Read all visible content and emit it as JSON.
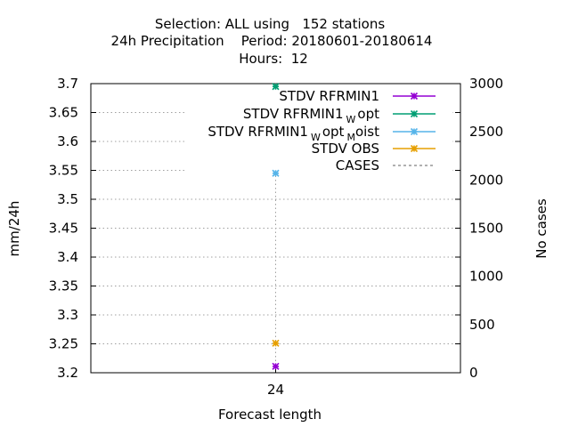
{
  "title_lines": [
    "Selection: ALL using   152 stations",
    "24h Precipitation    Period: 20180601-20180614",
    "Hours:  12"
  ],
  "colors": {
    "rfrmin1": "#9400d3",
    "rfrmin1_wopt": "#009e73",
    "rfrmin1_wopt_moist": "#56b4e9",
    "obs": "#e69f00",
    "cases": "#808080"
  },
  "chart_data": {
    "type": "scatter",
    "x_categories": [
      "24"
    ],
    "xlabel": "Forecast length",
    "ylabel": "mm/24h",
    "y2label": "No cases",
    "ylim": [
      3.2,
      3.7
    ],
    "yticks": [
      "3.2",
      "3.25",
      "3.3",
      "3.35",
      "3.4",
      "3.45",
      "3.5",
      "3.55",
      "3.6",
      "3.65",
      "3.7"
    ],
    "y2lim": [
      0,
      3000
    ],
    "y2ticks": [
      "0",
      "500",
      "1000",
      "1500",
      "2000",
      "2500",
      "3000"
    ],
    "grid": true,
    "legend_position": "top-right",
    "series": [
      {
        "name": "STDV RFRMIN1",
        "name_sub": "",
        "name_rest": "",
        "key": "rfrmin1",
        "axis": "y",
        "x": "24",
        "value": 3.211
      },
      {
        "name": "STDV RFRMIN1",
        "name_sub": "W",
        "name_rest": "opt",
        "key": "rfrmin1_wopt",
        "axis": "y",
        "x": "24",
        "value": 3.695
      },
      {
        "name": "STDV RFRMIN1",
        "name_sub": "W",
        "name_rest": "opt",
        "name_sub2": "M",
        "name_rest2": "oist",
        "key": "rfrmin1_wopt_moist",
        "axis": "y",
        "x": "24",
        "value": 3.545
      },
      {
        "name": "STDV OBS",
        "name_sub": "",
        "name_rest": "",
        "key": "obs",
        "axis": "y",
        "x": "24",
        "value": 3.251
      },
      {
        "name": "CASES",
        "name_sub": "",
        "name_rest": "",
        "key": "cases",
        "axis": "y2",
        "x": "24",
        "value": 2128
      }
    ]
  }
}
